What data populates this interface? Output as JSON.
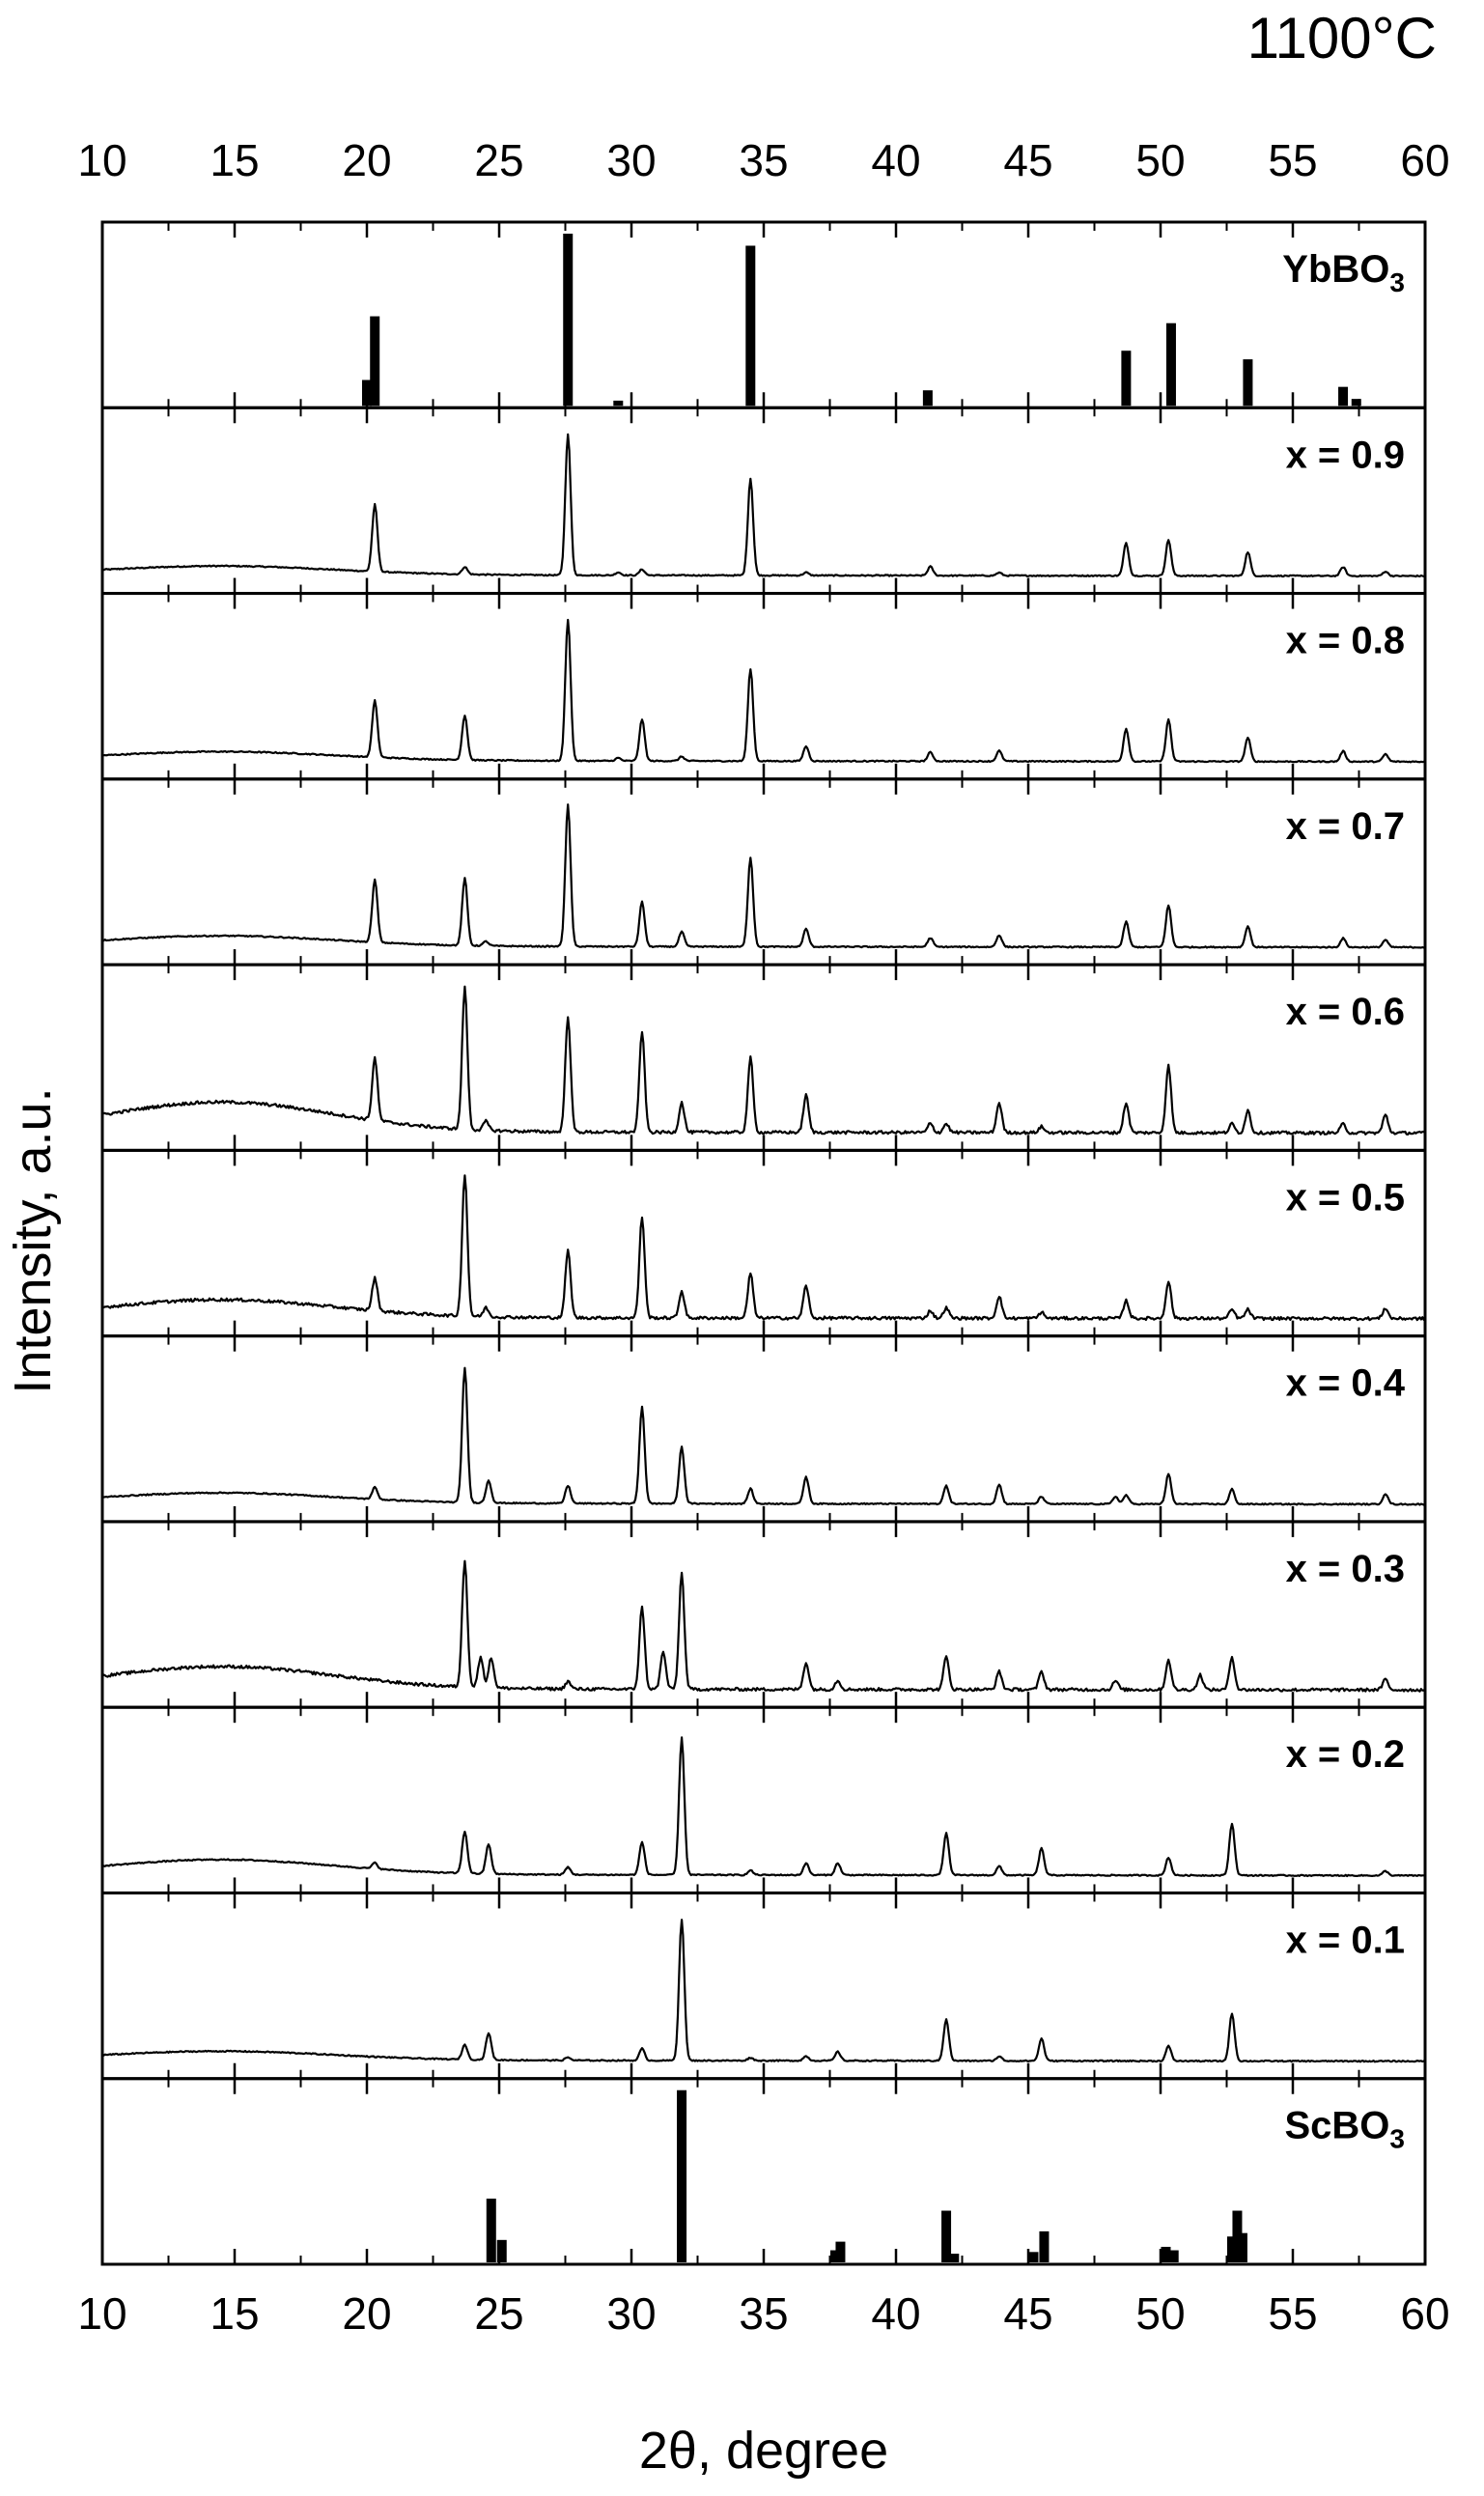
{
  "chart_data": {
    "type": "line",
    "title": "1100°C",
    "xlabel": "2θ, degree",
    "ylabel": "Intensity, a.u.",
    "xlim": [
      10,
      60
    ],
    "xticks": [
      10,
      15,
      20,
      25,
      30,
      35,
      40,
      45,
      50,
      55,
      60
    ],
    "grid": false,
    "panels": [
      {
        "label": "YbBO",
        "label_sub": "3",
        "kind": "reference",
        "sticks": [
          {
            "x": 20.0,
            "y": 0.15
          },
          {
            "x": 20.3,
            "y": 0.52
          },
          {
            "x": 27.6,
            "y": 1.0
          },
          {
            "x": 29.5,
            "y": 0.03
          },
          {
            "x": 34.5,
            "y": 0.93
          },
          {
            "x": 41.2,
            "y": 0.09
          },
          {
            "x": 48.7,
            "y": 0.32
          },
          {
            "x": 50.4,
            "y": 0.48
          },
          {
            "x": 53.3,
            "y": 0.27
          },
          {
            "x": 56.9,
            "y": 0.11
          },
          {
            "x": 57.4,
            "y": 0.04
          }
        ]
      },
      {
        "label": "x = 0.9",
        "kind": "pattern",
        "hump": 0.06,
        "peaks": [
          {
            "x": 20.3,
            "h": 0.45
          },
          {
            "x": 23.7,
            "h": 0.05
          },
          {
            "x": 27.6,
            "h": 0.95
          },
          {
            "x": 29.5,
            "h": 0.02
          },
          {
            "x": 30.4,
            "h": 0.04
          },
          {
            "x": 34.5,
            "h": 0.65
          },
          {
            "x": 36.6,
            "h": 0.02
          },
          {
            "x": 41.3,
            "h": 0.06
          },
          {
            "x": 43.9,
            "h": 0.02
          },
          {
            "x": 48.7,
            "h": 0.22
          },
          {
            "x": 50.3,
            "h": 0.24
          },
          {
            "x": 53.3,
            "h": 0.16
          },
          {
            "x": 56.9,
            "h": 0.06
          },
          {
            "x": 58.5,
            "h": 0.03
          }
        ]
      },
      {
        "label": "x = 0.8",
        "kind": "pattern",
        "hump": 0.06,
        "peaks": [
          {
            "x": 20.3,
            "h": 0.38
          },
          {
            "x": 23.7,
            "h": 0.3
          },
          {
            "x": 27.6,
            "h": 0.95
          },
          {
            "x": 29.5,
            "h": 0.02
          },
          {
            "x": 30.4,
            "h": 0.28
          },
          {
            "x": 31.9,
            "h": 0.03
          },
          {
            "x": 34.5,
            "h": 0.62
          },
          {
            "x": 36.6,
            "h": 0.1
          },
          {
            "x": 41.3,
            "h": 0.06
          },
          {
            "x": 43.9,
            "h": 0.07
          },
          {
            "x": 48.7,
            "h": 0.22
          },
          {
            "x": 50.3,
            "h": 0.28
          },
          {
            "x": 53.3,
            "h": 0.16
          },
          {
            "x": 56.9,
            "h": 0.07
          },
          {
            "x": 58.5,
            "h": 0.05
          }
        ]
      },
      {
        "label": "x = 0.7",
        "kind": "pattern",
        "hump": 0.07,
        "peaks": [
          {
            "x": 20.3,
            "h": 0.42
          },
          {
            "x": 23.7,
            "h": 0.45
          },
          {
            "x": 24.5,
            "h": 0.03
          },
          {
            "x": 27.6,
            "h": 0.95
          },
          {
            "x": 30.4,
            "h": 0.3
          },
          {
            "x": 31.9,
            "h": 0.1
          },
          {
            "x": 34.5,
            "h": 0.6
          },
          {
            "x": 36.6,
            "h": 0.12
          },
          {
            "x": 41.3,
            "h": 0.06
          },
          {
            "x": 43.9,
            "h": 0.08
          },
          {
            "x": 48.7,
            "h": 0.17
          },
          {
            "x": 50.3,
            "h": 0.28
          },
          {
            "x": 53.3,
            "h": 0.14
          },
          {
            "x": 56.9,
            "h": 0.06
          },
          {
            "x": 58.5,
            "h": 0.05
          }
        ]
      },
      {
        "label": "x = 0.6",
        "kind": "pattern",
        "hump": 0.2,
        "peaks": [
          {
            "x": 20.3,
            "h": 0.42
          },
          {
            "x": 23.7,
            "h": 0.95
          },
          {
            "x": 24.5,
            "h": 0.06
          },
          {
            "x": 27.6,
            "h": 0.78
          },
          {
            "x": 30.4,
            "h": 0.68
          },
          {
            "x": 31.9,
            "h": 0.2
          },
          {
            "x": 34.5,
            "h": 0.5
          },
          {
            "x": 36.6,
            "h": 0.25
          },
          {
            "x": 41.3,
            "h": 0.06
          },
          {
            "x": 41.9,
            "h": 0.06
          },
          {
            "x": 43.9,
            "h": 0.2
          },
          {
            "x": 45.5,
            "h": 0.04
          },
          {
            "x": 48.7,
            "h": 0.2
          },
          {
            "x": 50.3,
            "h": 0.45
          },
          {
            "x": 52.7,
            "h": 0.06
          },
          {
            "x": 53.3,
            "h": 0.15
          },
          {
            "x": 56.9,
            "h": 0.06
          },
          {
            "x": 58.5,
            "h": 0.12
          }
        ]
      },
      {
        "label": "x = 0.5",
        "kind": "pattern",
        "hump": 0.12,
        "peaks": [
          {
            "x": 20.3,
            "h": 0.22
          },
          {
            "x": 23.7,
            "h": 0.95
          },
          {
            "x": 24.5,
            "h": 0.06
          },
          {
            "x": 27.6,
            "h": 0.45
          },
          {
            "x": 30.4,
            "h": 0.68
          },
          {
            "x": 31.9,
            "h": 0.18
          },
          {
            "x": 34.5,
            "h": 0.3
          },
          {
            "x": 36.6,
            "h": 0.22
          },
          {
            "x": 41.3,
            "h": 0.05
          },
          {
            "x": 41.9,
            "h": 0.07
          },
          {
            "x": 43.9,
            "h": 0.15
          },
          {
            "x": 45.5,
            "h": 0.04
          },
          {
            "x": 48.7,
            "h": 0.12
          },
          {
            "x": 50.3,
            "h": 0.25
          },
          {
            "x": 52.7,
            "h": 0.06
          },
          {
            "x": 53.3,
            "h": 0.06
          },
          {
            "x": 58.5,
            "h": 0.07
          }
        ]
      },
      {
        "label": "x = 0.4",
        "kind": "pattern",
        "hump": 0.07,
        "peaks": [
          {
            "x": 20.3,
            "h": 0.08
          },
          {
            "x": 23.7,
            "h": 0.9
          },
          {
            "x": 24.6,
            "h": 0.15
          },
          {
            "x": 27.6,
            "h": 0.12
          },
          {
            "x": 30.4,
            "h": 0.65
          },
          {
            "x": 31.9,
            "h": 0.38
          },
          {
            "x": 34.5,
            "h": 0.1
          },
          {
            "x": 36.6,
            "h": 0.18
          },
          {
            "x": 41.9,
            "h": 0.12
          },
          {
            "x": 43.9,
            "h": 0.13
          },
          {
            "x": 45.5,
            "h": 0.05
          },
          {
            "x": 48.3,
            "h": 0.05
          },
          {
            "x": 48.7,
            "h": 0.06
          },
          {
            "x": 50.3,
            "h": 0.2
          },
          {
            "x": 52.7,
            "h": 0.1
          },
          {
            "x": 58.5,
            "h": 0.07
          }
        ]
      },
      {
        "label": "x = 0.3",
        "kind": "pattern",
        "hump": 0.15,
        "peaks": [
          {
            "x": 23.7,
            "h": 0.85
          },
          {
            "x": 24.3,
            "h": 0.2
          },
          {
            "x": 24.7,
            "h": 0.2
          },
          {
            "x": 27.6,
            "h": 0.05
          },
          {
            "x": 30.4,
            "h": 0.55
          },
          {
            "x": 31.2,
            "h": 0.25
          },
          {
            "x": 31.9,
            "h": 0.78
          },
          {
            "x": 36.6,
            "h": 0.18
          },
          {
            "x": 37.8,
            "h": 0.06
          },
          {
            "x": 41.9,
            "h": 0.22
          },
          {
            "x": 43.9,
            "h": 0.12
          },
          {
            "x": 45.5,
            "h": 0.12
          },
          {
            "x": 48.3,
            "h": 0.06
          },
          {
            "x": 50.3,
            "h": 0.2
          },
          {
            "x": 51.5,
            "h": 0.1
          },
          {
            "x": 52.7,
            "h": 0.22
          },
          {
            "x": 58.5,
            "h": 0.07
          }
        ]
      },
      {
        "label": "x = 0.2",
        "kind": "pattern",
        "hump": 0.1,
        "peaks": [
          {
            "x": 20.3,
            "h": 0.04
          },
          {
            "x": 23.7,
            "h": 0.28
          },
          {
            "x": 24.6,
            "h": 0.2
          },
          {
            "x": 27.6,
            "h": 0.05
          },
          {
            "x": 30.4,
            "h": 0.22
          },
          {
            "x": 31.9,
            "h": 0.92
          },
          {
            "x": 34.5,
            "h": 0.03
          },
          {
            "x": 36.6,
            "h": 0.08
          },
          {
            "x": 37.8,
            "h": 0.08
          },
          {
            "x": 41.9,
            "h": 0.28
          },
          {
            "x": 43.9,
            "h": 0.06
          },
          {
            "x": 45.5,
            "h": 0.18
          },
          {
            "x": 50.3,
            "h": 0.12
          },
          {
            "x": 52.7,
            "h": 0.35
          },
          {
            "x": 58.5,
            "h": 0.03
          }
        ]
      },
      {
        "label": "x = 0.1",
        "kind": "pattern",
        "hump": 0.06,
        "peaks": [
          {
            "x": 23.7,
            "h": 0.1
          },
          {
            "x": 24.6,
            "h": 0.18
          },
          {
            "x": 27.6,
            "h": 0.02
          },
          {
            "x": 30.4,
            "h": 0.08
          },
          {
            "x": 31.9,
            "h": 0.95
          },
          {
            "x": 34.5,
            "h": 0.02
          },
          {
            "x": 36.6,
            "h": 0.03
          },
          {
            "x": 37.8,
            "h": 0.06
          },
          {
            "x": 41.9,
            "h": 0.28
          },
          {
            "x": 43.9,
            "h": 0.03
          },
          {
            "x": 45.5,
            "h": 0.15
          },
          {
            "x": 50.3,
            "h": 0.1
          },
          {
            "x": 52.7,
            "h": 0.32
          }
        ]
      },
      {
        "label": "ScBO",
        "label_sub": "3",
        "kind": "reference",
        "sticks": [
          {
            "x": 24.7,
            "h_note": "",
            "y": 0.37
          },
          {
            "x": 25.1,
            "y": 0.13
          },
          {
            "x": 31.9,
            "y": 1.0
          },
          {
            "x": 37.7,
            "y": 0.07
          },
          {
            "x": 37.9,
            "y": 0.12
          },
          {
            "x": 41.9,
            "y": 0.3
          },
          {
            "x": 42.2,
            "y": 0.05
          },
          {
            "x": 45.6,
            "y": 0.18
          },
          {
            "x": 45.2,
            "y": 0.06
          },
          {
            "x": 50.2,
            "y": 0.09
          },
          {
            "x": 50.5,
            "y": 0.07
          },
          {
            "x": 52.7,
            "y": 0.15
          },
          {
            "x": 52.9,
            "y": 0.3
          },
          {
            "x": 53.1,
            "y": 0.17
          }
        ]
      }
    ]
  }
}
